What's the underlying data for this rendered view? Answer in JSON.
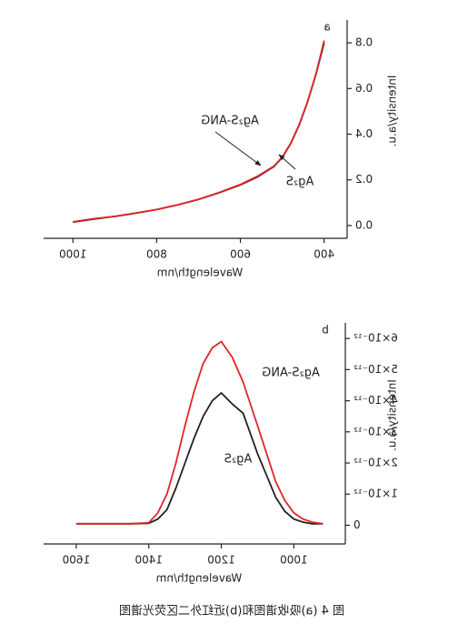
{
  "chart_data": [
    {
      "type": "line",
      "panel_label": "a",
      "x_label": "Wavelength/nm",
      "y_label": "Intensity/a.u.",
      "x": [
        1000,
        950,
        900,
        850,
        800,
        750,
        700,
        650,
        600,
        560,
        520,
        500,
        480,
        460,
        440,
        420,
        400
      ],
      "series": [
        {
          "name": "Ag₂S",
          "color": "#222222",
          "values": [
            0.015,
            0.028,
            0.04,
            0.054,
            0.07,
            0.09,
            0.114,
            0.144,
            0.178,
            0.212,
            0.258,
            0.298,
            0.358,
            0.438,
            0.538,
            0.658,
            0.8
          ]
        },
        {
          "name": "Ag₂S-ANG",
          "color": "#e0262a",
          "values": [
            0.016,
            0.03,
            0.04,
            0.055,
            0.07,
            0.09,
            0.115,
            0.145,
            0.18,
            0.215,
            0.26,
            0.3,
            0.36,
            0.44,
            0.54,
            0.66,
            0.81
          ]
        }
      ],
      "annotations": [
        "Ag₂S-ANG",
        "Ag₂S"
      ],
      "xlim": [
        345,
        1070
      ],
      "xticks": [
        400,
        600,
        800,
        1000
      ],
      "ylim": [
        -0.056,
        0.9
      ],
      "yticks": [
        {
          "value": 0,
          "label": "0.0"
        },
        0.2,
        0.4,
        0.6,
        0.8
      ]
    },
    {
      "type": "line",
      "panel_label": "b",
      "x_label": "Wavelength/nm",
      "y_label": "Intensity/a.u.",
      "x": [
        1600,
        1500,
        1450,
        1400,
        1375,
        1350,
        1325,
        1300,
        1275,
        1250,
        1225,
        1200,
        1170,
        1140,
        1100,
        1075,
        1050,
        1025,
        1000,
        975,
        950,
        920
      ],
      "series": [
        {
          "name": "Ag₂S",
          "color": "#222222",
          "values": [
            5e-14,
            5e-14,
            5e-14,
            6e-14,
            2e-13,
            5e-13,
            1.2e-12,
            2e-12,
            2.8e-12,
            3.5e-12,
            4e-12,
            4.25e-12,
            3.9e-12,
            3.6e-12,
            2.3e-12,
            1.6e-12,
            9e-13,
            4.5e-13,
            2e-13,
            1e-13,
            5e-14,
            5e-14
          ]
        },
        {
          "name": "Ag₂S-ANG",
          "color": "#e0262a",
          "values": [
            5e-14,
            5e-14,
            5e-14,
            8e-14,
            4e-13,
            1e-12,
            2e-12,
            3.2e-12,
            4.3e-12,
            5.2e-12,
            5.7e-12,
            5.9e-12,
            5.4e-12,
            4.6e-12,
            3.2e-12,
            2.3e-12,
            1.4e-12,
            8e-13,
            4e-13,
            2e-13,
            1e-13,
            5e-14
          ]
        }
      ],
      "annotations": [
        "Ag₂S-ANG",
        "Ag₂S"
      ],
      "xlim": [
        858,
        1690
      ],
      "xticks": [
        1000,
        1200,
        1400,
        1600
      ],
      "ylim": [
        -6e-13,
        6.5e-12
      ],
      "yticks": [
        0,
        {
          "value": 1e-12,
          "label": "1×10⁻¹²"
        },
        {
          "value": 2e-12,
          "label": "2×10⁻¹²"
        },
        {
          "value": 3e-12,
          "label": "3×10⁻¹²"
        },
        {
          "value": 4e-12,
          "label": "4×10⁻¹²"
        },
        {
          "value": 5e-12,
          "label": "5×10⁻¹²"
        },
        {
          "value": 6e-12,
          "label": "6×10⁻¹²"
        }
      ]
    }
  ],
  "caption": "图 4 (a)吸收谱图和(b)近红外二区荧光谱图"
}
